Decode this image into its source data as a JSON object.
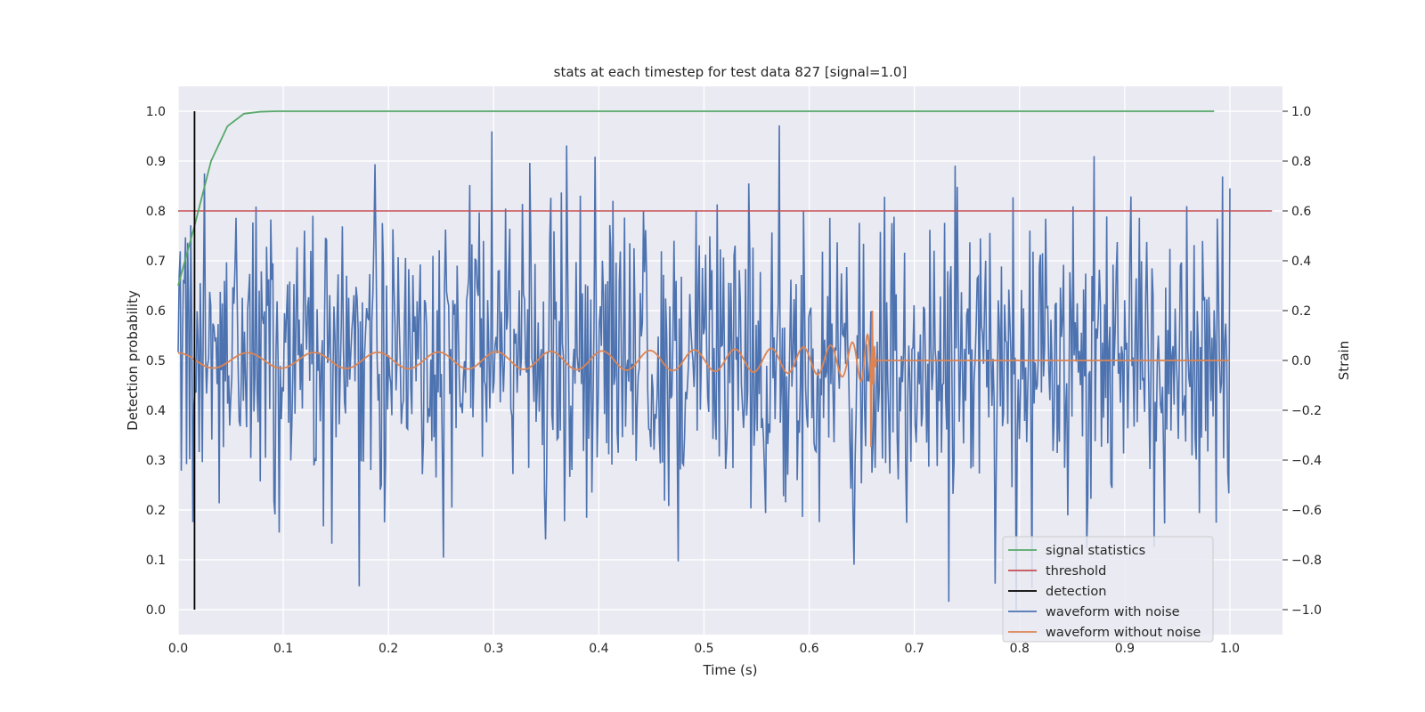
{
  "chart_data": {
    "type": "line",
    "title": "stats at each timestep for test data 827 [signal=1.0]",
    "xlabel": "Time (s)",
    "ylabel": "Detection probability",
    "y2label": "Strain",
    "xlim": [
      0.0,
      1.05
    ],
    "ylim": [
      -0.05,
      1.05
    ],
    "y2lim": [
      -1.1,
      1.1
    ],
    "xticks": [
      "0.0",
      "0.1",
      "0.2",
      "0.3",
      "0.4",
      "0.5",
      "0.6",
      "0.7",
      "0.8",
      "0.9",
      "1.0"
    ],
    "yticks": [
      "0.0",
      "0.1",
      "0.2",
      "0.3",
      "0.4",
      "0.5",
      "0.6",
      "0.7",
      "0.8",
      "0.9",
      "1.0"
    ],
    "y2ticks": [
      "−1.0",
      "−0.8",
      "−0.6",
      "−0.4",
      "−0.2",
      "0.0",
      "0.2",
      "0.4",
      "0.6",
      "0.8",
      "1.0"
    ],
    "grid": true,
    "legend_position": "lower-right",
    "colors": {
      "signal_statistics": "#55a868",
      "threshold": "#c44e52",
      "detection": "#000000",
      "waveform_with_noise": "#4c72b0",
      "waveform_without_noise": "#dd8452",
      "background": "#eaeaf2",
      "grid": "#ffffff"
    },
    "series": [
      {
        "name": "signal statistics",
        "axis": "left",
        "x": [
          0.0,
          0.0156,
          0.0313,
          0.0469,
          0.0625,
          0.0781,
          0.0938,
          0.2,
          0.4,
          0.6,
          0.8,
          0.985
        ],
        "y": [
          0.65,
          0.77,
          0.9,
          0.97,
          0.995,
          0.999,
          1.0,
          1.0,
          1.0,
          1.0,
          1.0,
          1.0
        ]
      },
      {
        "name": "threshold",
        "axis": "left",
        "x": [
          0.0,
          1.04
        ],
        "y": [
          0.8,
          0.8
        ]
      },
      {
        "name": "detection",
        "axis": "left",
        "x": [
          0.0156,
          0.0156
        ],
        "y": [
          0.0,
          1.0
        ]
      },
      {
        "name": "waveform with noise",
        "axis": "right",
        "description": "noisy strain time series",
        "x_range": [
          0.0,
          1.0
        ],
        "n_points": 1000,
        "std": 0.3,
        "y_range": [
          -1.0,
          1.0
        ]
      },
      {
        "name": "waveform without noise",
        "axis": "right",
        "description": "chirp waveform",
        "t_merge": 0.66,
        "x_range": [
          0.0,
          1.0
        ]
      }
    ],
    "legend": [
      "signal statistics",
      "threshold",
      "detection",
      "waveform with noise",
      "waveform without noise"
    ]
  }
}
